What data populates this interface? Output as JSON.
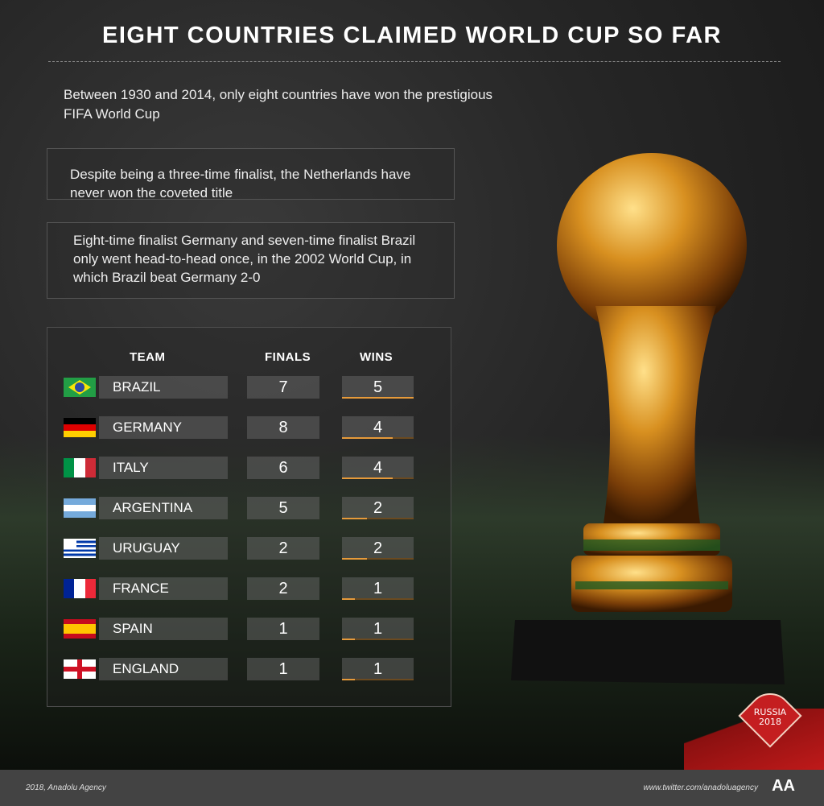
{
  "title": "EIGHT COUNTRIES CLAIMED WORLD CUP SO FAR",
  "intro": "Between 1930 and 2014, only eight countries have won the prestigious FIFA World Cup",
  "notes": [
    "Despite being a three-time finalist, the Netherlands have never won the coveted title",
    "Eight-time finalist Germany and seven-time finalist Brazil only went head-to-head once, in the 2002 World Cup, in which Brazil beat Germany 2-0"
  ],
  "table": {
    "headers": {
      "team": "TEAM",
      "finals": "FINALS",
      "wins": "WINS"
    },
    "rows": [
      {
        "team": "BRAZIL",
        "finals": "7",
        "wins": "5",
        "flag": "brazil"
      },
      {
        "team": "GERMANY",
        "finals": "8",
        "wins": "4",
        "flag": "germany"
      },
      {
        "team": "ITALY",
        "finals": "6",
        "wins": "4",
        "flag": "italy"
      },
      {
        "team": "ARGENTINA",
        "finals": "5",
        "wins": "2",
        "flag": "argentina"
      },
      {
        "team": "URUGUAY",
        "finals": "2",
        "wins": "2",
        "flag": "uruguay"
      },
      {
        "team": "FRANCE",
        "finals": "2",
        "wins": "1",
        "flag": "france"
      },
      {
        "team": "SPAIN",
        "finals": "1",
        "wins": "1",
        "flag": "spain"
      },
      {
        "team": "ENGLAND",
        "finals": "1",
        "wins": "1",
        "flag": "england"
      }
    ],
    "bar_color": "#e69a3a"
  },
  "badge": {
    "line1": "RUSSIA",
    "line2": "2018"
  },
  "footer": {
    "credit": "2018, Anadolu Agency",
    "link": "www.twitter.com/anadoluagency",
    "logo": "AA"
  }
}
